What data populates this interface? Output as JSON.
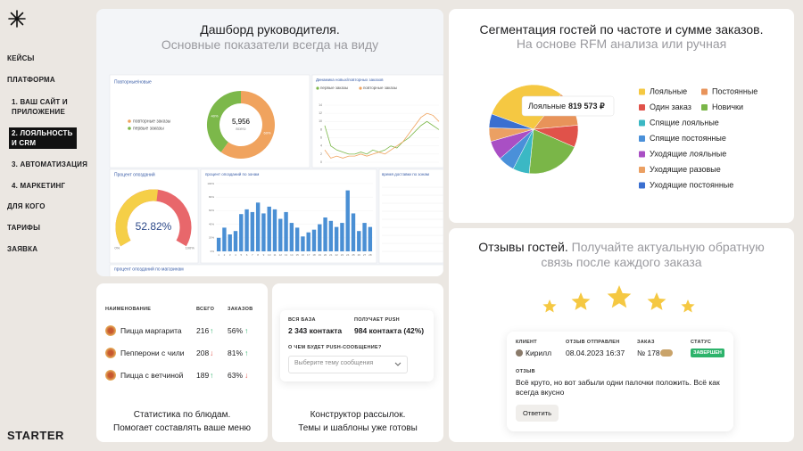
{
  "sidebar": {
    "menu": [
      "КЕЙСЫ",
      "ПЛАТФОРМА",
      "1. ВАШ САЙТ И ПРИЛОЖЕНИЕ",
      "2. ЛОЯЛЬНОСТЬ И CRM",
      "3. АВТОМАТИЗАЦИЯ",
      "4. МАРКЕТИНГ",
      "ДЛЯ КОГО",
      "ТАРИФЫ",
      "ЗАЯВКА"
    ],
    "logo": "STARTER"
  },
  "dashboard": {
    "title": "Дашборд руководителя.",
    "subtitle": "Основные показатели всегда на виду",
    "donut": {
      "title": "Повторные/новые",
      "total": "5,956",
      "total_label": "всего",
      "series": [
        {
          "name": "повторные заказы",
          "color": "#f0a35e",
          "value": 60,
          "label": "60%"
        },
        {
          "name": "первые заказы",
          "color": "#7cb84a",
          "value": 40,
          "label": "40%"
        }
      ]
    },
    "dynamics": {
      "type": "line",
      "title": "Динамика новых/повторных заказов",
      "ylim": [
        0,
        14
      ],
      "yticks": [
        0,
        2,
        4,
        6,
        8,
        10,
        12,
        14
      ],
      "series": [
        {
          "name": "первые заказы",
          "color": "#7cb84a",
          "values": [
            9,
            4,
            3,
            2.5,
            2,
            2,
            2.5,
            2,
            3,
            2.5,
            3,
            4,
            3.5,
            5,
            6,
            7.5,
            9,
            10,
            9,
            8
          ]
        },
        {
          "name": "повторные заказы",
          "color": "#f0a35e",
          "values": [
            3,
            1,
            1.5,
            1,
            1.5,
            1.5,
            2,
            1.5,
            2,
            2.5,
            2,
            3,
            4,
            5,
            7,
            9,
            11,
            12,
            11.5,
            10
          ]
        }
      ]
    },
    "gauge": {
      "title": "Процент опозданий",
      "value": 52.82,
      "value_label": "52.82%",
      "ticks": [
        {
          "value": 0,
          "label": "0%"
        },
        {
          "value": 100,
          "label": "100%"
        }
      ],
      "color": "#f5cf47",
      "rest_color": "#e8676b"
    },
    "zones": {
      "type": "bar",
      "title": "процент опозданий по зонам",
      "color": "#4a8fd4",
      "ylim": [
        0,
        100
      ],
      "yticks": [
        {
          "value": 0,
          "label": "0%"
        },
        {
          "value": 20,
          "label": "20%"
        },
        {
          "value": 40,
          "label": "40%"
        },
        {
          "value": 60,
          "label": "60%"
        },
        {
          "value": 80,
          "label": "80%"
        },
        {
          "value": 100,
          "label": "100%"
        }
      ],
      "categories": [
        "1",
        "2",
        "3",
        "4",
        "5",
        "6",
        "7",
        "8",
        "9",
        "10",
        "11",
        "12",
        "13",
        "14",
        "15",
        "16",
        "17",
        "18",
        "19",
        "20",
        "21",
        "22",
        "23",
        "24",
        "25",
        "26",
        "27",
        "28"
      ],
      "values": [
        20,
        35,
        25,
        30,
        55,
        62,
        58,
        72,
        56,
        66,
        62,
        48,
        58,
        42,
        35,
        22,
        28,
        32,
        40,
        50,
        45,
        36,
        42,
        90,
        56,
        30,
        42,
        36
      ]
    },
    "delivery": {
      "title": "время доставки по зонам"
    },
    "stores": {
      "title": "процент опозданий по магазинам"
    }
  },
  "segmentation": {
    "type": "pie",
    "title": "Сегментация гостей по частоте и сумме заказов.",
    "subtitle": "На основе RFM анализа или ручная",
    "series": [
      {
        "name": "Лояльные",
        "color": "#f5c842",
        "value": 30
      },
      {
        "name": "Постоянные",
        "color": "#e8935a",
        "value": 13
      },
      {
        "name": "Один заказ",
        "color": "#e0524a",
        "value": 8
      },
      {
        "name": "Новички",
        "color": "#7ab648",
        "value": 20
      },
      {
        "name": "Спящие лояльные",
        "color": "#3bb8c4",
        "value": 6
      },
      {
        "name": "Спящие постоянные",
        "color": "#4a90d9",
        "value": 6
      },
      {
        "name": "Уходящие лояльные",
        "color": "#a94fc4",
        "value": 7
      },
      {
        "name": "Уходящие разовые",
        "color": "#eba063",
        "value": 5
      },
      {
        "name": "Уходящие постоянные",
        "color": "#3a6fd0",
        "value": 5
      }
    ],
    "tooltip": {
      "name": "Лояльные",
      "amount": "819 573 ₽"
    }
  },
  "dishes": {
    "headers": [
      "НАИМЕНОВАНИЕ",
      "ВСЕГО",
      "ЗАКАЗОВ"
    ],
    "rows": [
      {
        "name": "Пицца маргарита",
        "total": "216",
        "total_trend": "↑",
        "share": "56%",
        "share_trend": "↑"
      },
      {
        "name": "Пепперони с чили",
        "total": "208",
        "total_trend": "↓",
        "share": "81%",
        "share_trend": "↑"
      },
      {
        "name": "Пицца с ветчиной",
        "total": "189",
        "total_trend": "↑",
        "share": "63%",
        "share_trend": "↓"
      }
    ],
    "caption": [
      "Статистика по блюдам.",
      "Помогает составлять ваше меню"
    ]
  },
  "mailing": {
    "base_label": "ВСЯ БАЗА",
    "base_value": "2 343 контакта",
    "push_label": "ПОЛУЧАЕТ PUSH",
    "push_value": "984 контакта (42%)",
    "question": "О ЧЕМ БУДЕТ PUSH-СООБЩЕНИЕ?",
    "select": "Выберите тему сообщения",
    "caption": [
      "Конструктор рассылок.",
      "Темы и шаблоны уже готовы"
    ]
  },
  "reviews": {
    "title": "Отзывы гостей.",
    "subtitle": "Получайте актуальную обратную связь после каждого заказа",
    "client_label": "КЛИЕНТ",
    "client": "Кирилл",
    "sent_label": "ОТЗЫВ ОТПРАВЛЕН",
    "sent": "08.04.2023 16:37",
    "order_label": "ЗАКАЗ",
    "order": "№ 178",
    "status_label": "СТАТУС",
    "status": "ЗАВЕРШЕН",
    "review_label": "ОТЗЫВ",
    "review": "Всё круто, но вот забыли одни палочки положить. Всё как всегда вкусно",
    "button": "Ответить"
  }
}
